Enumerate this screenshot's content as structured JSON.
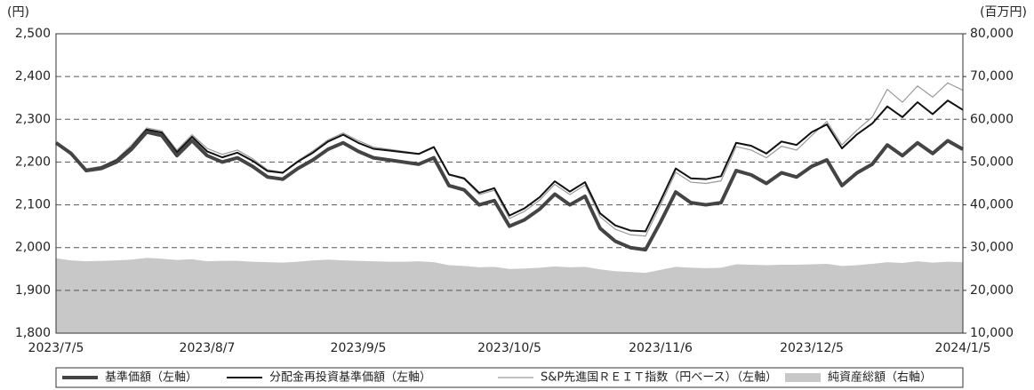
{
  "chart_data": {
    "type": "line",
    "y_unit": "(円)",
    "y2_unit": "(百万円)",
    "categories": [
      "2023/7/5",
      null,
      null,
      null,
      null,
      null,
      null,
      null,
      null,
      null,
      "2023/8/7",
      null,
      null,
      null,
      null,
      null,
      null,
      null,
      null,
      null,
      "2023/9/5",
      null,
      null,
      null,
      null,
      null,
      null,
      null,
      null,
      null,
      "2023/10/5",
      null,
      null,
      null,
      null,
      null,
      null,
      null,
      null,
      null,
      "2023/11/6",
      null,
      null,
      null,
      null,
      null,
      null,
      null,
      null,
      null,
      "2023/12/5",
      null,
      null,
      null,
      null,
      null,
      null,
      null,
      null,
      null,
      "2024/1/5"
    ],
    "series": [
      {
        "name": "純資産総額（右軸）",
        "color": "#c8c8c8",
        "axis": "y2",
        "kind": "area",
        "values": [
          27500,
          27000,
          26800,
          26900,
          27000,
          27200,
          27600,
          27400,
          27100,
          27300,
          26800,
          26900,
          26900,
          26700,
          26600,
          26500,
          26700,
          27000,
          27200,
          27000,
          26900,
          26800,
          26700,
          26700,
          26800,
          26600,
          25900,
          25700,
          25400,
          25500,
          25000,
          25100,
          25300,
          25600,
          25400,
          25500,
          24900,
          24500,
          24300,
          24100,
          24800,
          25500,
          25300,
          25200,
          25300,
          26100,
          26000,
          25900,
          26000,
          26000,
          26100,
          26200,
          25700,
          25900,
          26200,
          26600,
          26400,
          26800,
          26500,
          26700,
          26600
        ]
      },
      {
        "name": "基準価額（左軸）",
        "color": "#444444",
        "axis": "y",
        "values": [
          2245,
          2220,
          2180,
          2185,
          2200,
          2230,
          2270,
          2262,
          2215,
          2250,
          2215,
          2200,
          2210,
          2190,
          2165,
          2160,
          2185,
          2205,
          2230,
          2245,
          2225,
          2210,
          2205,
          2200,
          2195,
          2210,
          2145,
          2135,
          2100,
          2110,
          2050,
          2065,
          2090,
          2125,
          2100,
          2120,
          2045,
          2015,
          2000,
          1995,
          2060,
          2130,
          2105,
          2100,
          2105,
          2180,
          2170,
          2150,
          2175,
          2165,
          2190,
          2205,
          2145,
          2175,
          2195,
          2240,
          2215,
          2245,
          2220,
          2250,
          2230
        ]
      },
      {
        "name": "分配金再投資基準価額（左軸）",
        "color": "#111111",
        "axis": "y",
        "values": [
          2245,
          2221,
          2182,
          2188,
          2204,
          2235,
          2276,
          2269,
          2223,
          2259,
          2225,
          2211,
          2222,
          2203,
          2179,
          2175,
          2201,
          2222,
          2248,
          2264,
          2245,
          2231,
          2227,
          2223,
          2219,
          2235,
          2171,
          2162,
          2128,
          2139,
          2075,
          2092,
          2118,
          2155,
          2131,
          2153,
          2080,
          2052,
          2040,
          2038,
          2110,
          2185,
          2162,
          2160,
          2167,
          2245,
          2238,
          2220,
          2248,
          2240,
          2270,
          2288,
          2232,
          2265,
          2290,
          2330,
          2305,
          2340,
          2312,
          2344,
          2322
        ]
      },
      {
        "name": "S&P先進国ＲＥＩＴ指数（円ベース）（左軸）",
        "color": "#9a9a9a",
        "axis": "y",
        "values": [
          2245,
          2222,
          2184,
          2190,
          2207,
          2240,
          2280,
          2273,
          2228,
          2264,
          2232,
          2218,
          2228,
          2208,
          2182,
          2176,
          2203,
          2226,
          2252,
          2268,
          2250,
          2235,
          2230,
          2225,
          2220,
          2236,
          2170,
          2160,
          2124,
          2134,
          2068,
          2085,
          2111,
          2148,
          2124,
          2146,
          2072,
          2043,
          2030,
          2027,
          2100,
          2176,
          2153,
          2150,
          2156,
          2236,
          2228,
          2210,
          2237,
          2228,
          2262,
          2295,
          2240,
          2275,
          2305,
          2370,
          2340,
          2378,
          2352,
          2385,
          2368
        ]
      }
    ],
    "ylim": [
      1800,
      2500
    ],
    "yticks": [
      {
        "value": 1800,
        "label": "1,800"
      },
      {
        "value": 1900,
        "label": "1,900"
      },
      {
        "value": 2000,
        "label": "2,000"
      },
      {
        "value": 2100,
        "label": "2,100"
      },
      {
        "value": 2200,
        "label": "2,200"
      },
      {
        "value": 2300,
        "label": "2,300"
      },
      {
        "value": 2400,
        "label": "2,400"
      },
      {
        "value": 2500,
        "label": "2,500"
      }
    ],
    "y2lim": [
      10000,
      80000
    ],
    "y2ticks": [
      {
        "value": 10000,
        "label": "10,000"
      },
      {
        "value": 20000,
        "label": "20,000"
      },
      {
        "value": 30000,
        "label": "30,000"
      },
      {
        "value": 40000,
        "label": "40,000"
      },
      {
        "value": 50000,
        "label": "50,000"
      },
      {
        "value": 60000,
        "label": "60,000"
      },
      {
        "value": 70000,
        "label": "70,000"
      },
      {
        "value": 80000,
        "label": "80,000"
      }
    ],
    "grid": true
  }
}
